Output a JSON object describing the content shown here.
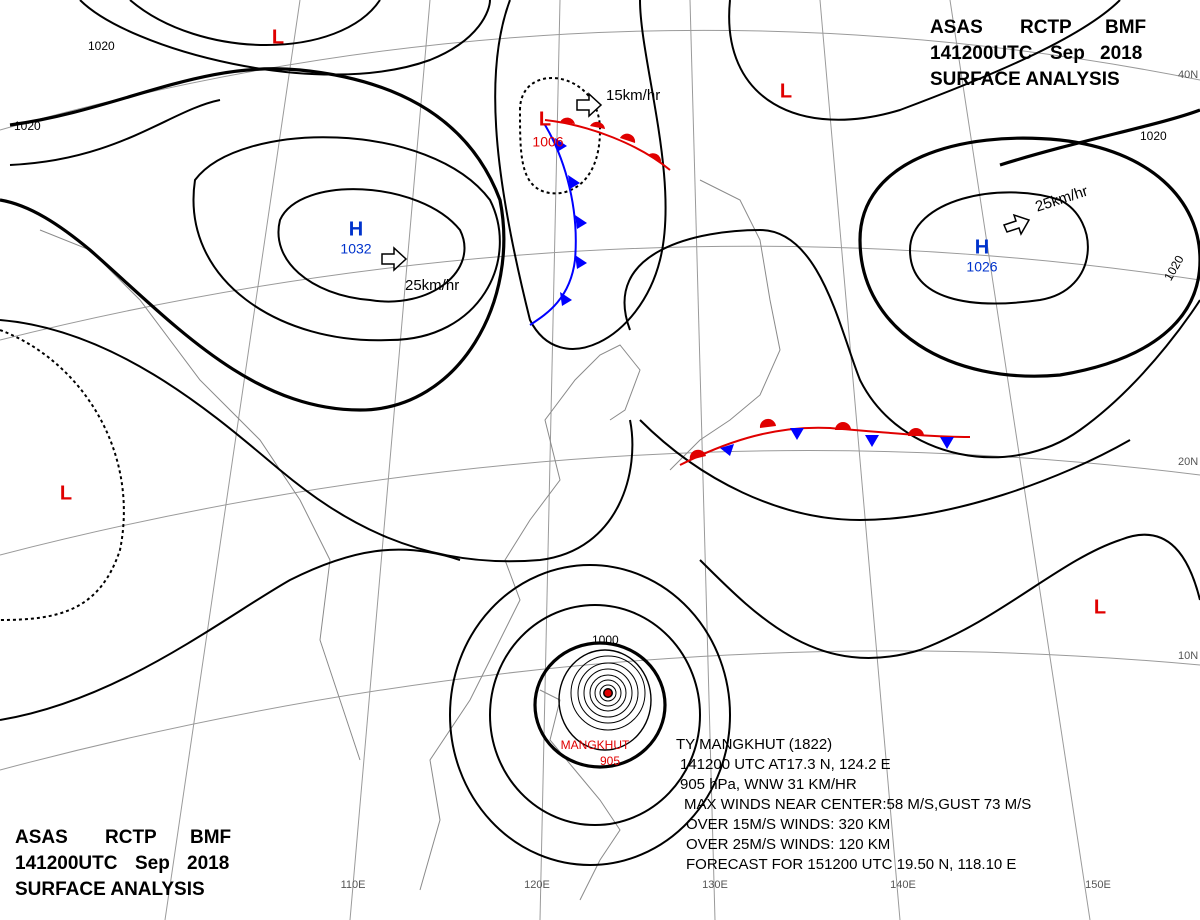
{
  "header": {
    "agency": [
      "ASAS",
      "RCTP",
      "BMF"
    ],
    "time": "141200UTC",
    "month": "Sep",
    "year": "2018",
    "title": "SURFACE ANALYSIS"
  },
  "pressure_centers": [
    {
      "symbol": "H",
      "pressure": "1032"
    },
    {
      "symbol": "H",
      "pressure": "1026"
    },
    {
      "symbol": "L",
      "pressure": "1006"
    },
    {
      "symbol": "L"
    },
    {
      "symbol": "L"
    },
    {
      "symbol": "L"
    },
    {
      "symbol": "L"
    }
  ],
  "isobar_labels": [
    "1020",
    "1020",
    "1020",
    "1020",
    "1000"
  ],
  "motions": [
    "15km/hr",
    "25km/hr",
    "25km/hr"
  ],
  "typhoon": {
    "name": "MANGKHUT",
    "pressure": "905",
    "lines": [
      "TY MANGKHUT (1822)",
      "141200 UTC AT17.3 N, 124.2 E",
      "905 hPa, WNW 31 KM/HR",
      "MAX WINDS NEAR CENTER:58 M/S,GUST 73 M/S",
      "OVER 15M/S WINDS: 320 KM",
      "OVER 25M/S WINDS: 120 KM",
      "FORECAST FOR 151200 UTC 19.50 N, 118.10 E"
    ]
  },
  "grid_labels": {
    "lon": [
      "110E",
      "120E",
      "130E",
      "140E",
      "150E"
    ],
    "lat": [
      "40N",
      "20N",
      "10N"
    ]
  }
}
